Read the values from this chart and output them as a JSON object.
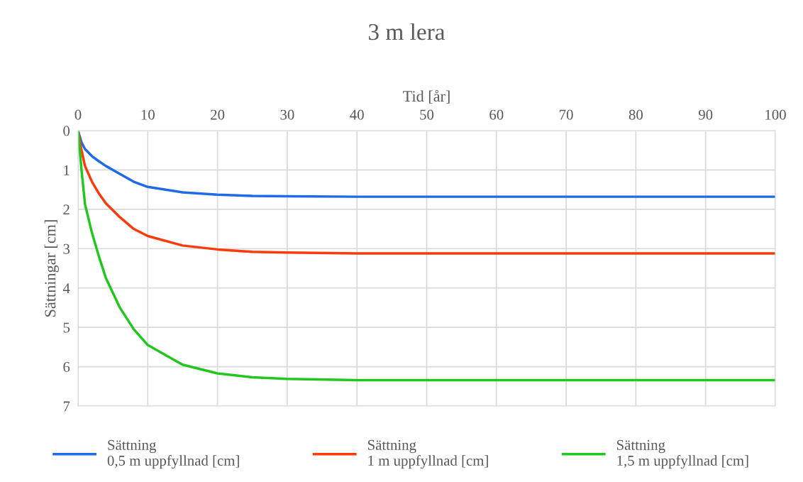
{
  "chart_data": {
    "type": "line",
    "title": "3 m lera",
    "xlabel": "Tid [år]",
    "ylabel": "Sättningar [cm]",
    "xlim": [
      0,
      100
    ],
    "xticks": [
      0,
      10,
      20,
      30,
      40,
      50,
      60,
      70,
      80,
      90,
      100
    ],
    "ylim": [
      7,
      0
    ],
    "yticks": [
      0,
      1,
      2,
      3,
      4,
      5,
      6,
      7
    ],
    "grid": true,
    "legend": "bottom",
    "marker": "none",
    "line_style": "solid",
    "x": [
      0,
      0.5,
      1,
      2,
      3,
      4,
      6,
      8,
      10,
      15,
      20,
      25,
      30,
      40,
      100
    ],
    "series": [
      {
        "name": "Sättning\n0,5 m uppfyllnad [cm]",
        "color": "#1f6ae8",
        "values": [
          0,
          0.3,
          0.47,
          0.65,
          0.78,
          0.9,
          1.1,
          1.3,
          1.43,
          1.57,
          1.63,
          1.66,
          1.67,
          1.68,
          1.68
        ]
      },
      {
        "name": "Sättning\n1 m uppfyllnad [cm]",
        "color": "#ff3a0a",
        "values": [
          0,
          0.5,
          0.9,
          1.3,
          1.6,
          1.85,
          2.2,
          2.5,
          2.68,
          2.92,
          3.02,
          3.08,
          3.1,
          3.12,
          3.12
        ]
      },
      {
        "name": "Sättning\n1,5 m uppfyllnad [cm]",
        "color": "#22c71e",
        "values": [
          0,
          1.0,
          1.87,
          2.6,
          3.2,
          3.75,
          4.5,
          5.05,
          5.45,
          5.95,
          6.17,
          6.27,
          6.31,
          6.34,
          6.34
        ]
      }
    ]
  }
}
